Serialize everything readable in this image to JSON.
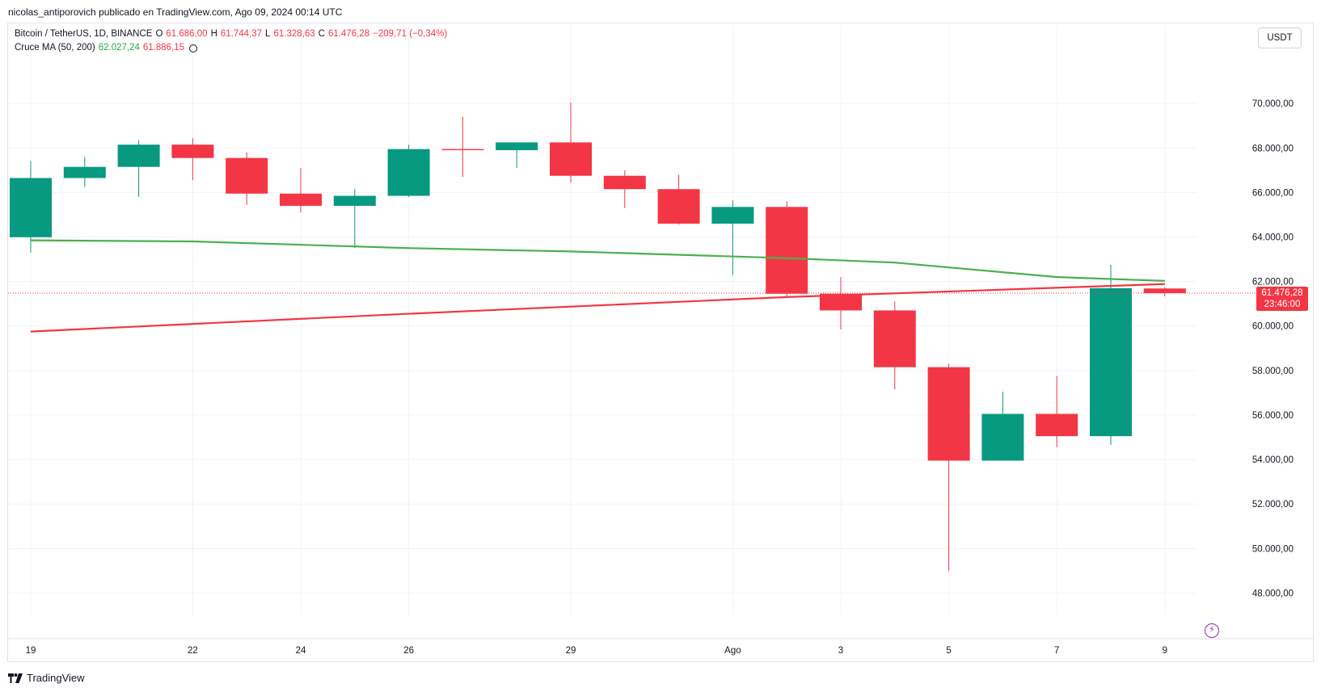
{
  "caption": "nicolas_antiporovich publicado en TradingView.com, Ago 09, 2024 00:14 UTC",
  "legend": {
    "symbol": "Bitcoin / TetherUS, 1D, BINANCE",
    "o_label": "O",
    "o_value": "61.686,00",
    "h_label": "H",
    "h_value": "61.744,37",
    "l_label": "L",
    "l_value": "61.328,63",
    "c_label": "C",
    "c_value": "61.476,28",
    "change": "−209,71 (−0,34%)",
    "ma_label": "Cruce MA (50, 200)",
    "ma_fast_value": "62.027,24",
    "ma_slow_value": "61.886,15"
  },
  "currency_button": "USDT",
  "last_price": {
    "price": "61.476,28",
    "countdown": "23:46:00"
  },
  "footer": {
    "brand": "TradingView"
  },
  "colors": {
    "up": "#089981",
    "down": "#f23645",
    "ma_fast": "#4caf50",
    "ma_slow": "#f23645",
    "grid": "#f0f3fa",
    "axis_text": "#131722"
  },
  "chart_data": {
    "type": "candlestick",
    "y_axis_ticks": [
      "70.000,00",
      "68.000,00",
      "66.000,00",
      "64.000,00",
      "62.000,00",
      "60.000,00",
      "58.000,00",
      "56.000,00",
      "54.000,00",
      "52.000,00",
      "50.000,00",
      "48.000,00"
    ],
    "y_tick_values": [
      70000,
      68000,
      66000,
      64000,
      62000,
      60000,
      58000,
      56000,
      54000,
      52000,
      50000,
      48000
    ],
    "ylim": [
      47000,
      72400
    ],
    "x_axis_ticks": [
      {
        "label": "19",
        "index": 0
      },
      {
        "label": "22",
        "index": 3
      },
      {
        "label": "24",
        "index": 5
      },
      {
        "label": "26",
        "index": 7
      },
      {
        "label": "29",
        "index": 10
      },
      {
        "label": "Ago",
        "index": 13
      },
      {
        "label": "3",
        "index": 15
      },
      {
        "label": "5",
        "index": 17
      },
      {
        "label": "7",
        "index": 19
      },
      {
        "label": "9",
        "index": 21
      }
    ],
    "candles": [
      {
        "date": "Jul 19",
        "o": 63990,
        "h": 67400,
        "l": 63300,
        "c": 66650
      },
      {
        "date": "Jul 20",
        "o": 66650,
        "h": 67600,
        "l": 66250,
        "c": 67150
      },
      {
        "date": "Jul 21",
        "o": 67150,
        "h": 68350,
        "l": 65800,
        "c": 68150
      },
      {
        "date": "Jul 22",
        "o": 68150,
        "h": 68450,
        "l": 66550,
        "c": 67550
      },
      {
        "date": "Jul 23",
        "o": 67550,
        "h": 67800,
        "l": 65450,
        "c": 65950
      },
      {
        "date": "Jul 24",
        "o": 65950,
        "h": 67100,
        "l": 65100,
        "c": 65400
      },
      {
        "date": "Jul 25",
        "o": 65400,
        "h": 66150,
        "l": 63500,
        "c": 65850
      },
      {
        "date": "Jul 26",
        "o": 65850,
        "h": 68150,
        "l": 65800,
        "c": 67950
      },
      {
        "date": "Jul 27",
        "o": 67950,
        "h": 69400,
        "l": 66700,
        "c": 67900
      },
      {
        "date": "Jul 28",
        "o": 67900,
        "h": 68250,
        "l": 67100,
        "c": 68250
      },
      {
        "date": "Jul 29",
        "o": 68250,
        "h": 70050,
        "l": 66450,
        "c": 66750
      },
      {
        "date": "Jul 30",
        "o": 66750,
        "h": 67000,
        "l": 65300,
        "c": 66150
      },
      {
        "date": "Jul 31",
        "o": 66150,
        "h": 66800,
        "l": 64550,
        "c": 64600
      },
      {
        "date": "Aug 1",
        "o": 64600,
        "h": 65650,
        "l": 62300,
        "c": 65350
      },
      {
        "date": "Aug 2",
        "o": 65350,
        "h": 65600,
        "l": 61300,
        "c": 61450
      },
      {
        "date": "Aug 3",
        "o": 61450,
        "h": 62200,
        "l": 59850,
        "c": 60700
      },
      {
        "date": "Aug 4",
        "o": 60700,
        "h": 61100,
        "l": 57150,
        "c": 58150
      },
      {
        "date": "Aug 5",
        "o": 58150,
        "h": 58300,
        "l": 49000,
        "c": 53950
      },
      {
        "date": "Aug 6",
        "o": 53950,
        "h": 57050,
        "l": 53950,
        "c": 56050
      },
      {
        "date": "Aug 7",
        "o": 56050,
        "h": 57750,
        "l": 54550,
        "c": 55050
      },
      {
        "date": "Aug 8",
        "o": 55050,
        "h": 62750,
        "l": 54650,
        "c": 61700
      },
      {
        "date": "Aug 9",
        "o": 61686,
        "h": 61744.37,
        "l": 61328.63,
        "c": 61476.28
      }
    ],
    "ma_fast": {
      "name": "MA 50",
      "points": [
        [
          0,
          63850
        ],
        [
          3,
          63800
        ],
        [
          7,
          63500
        ],
        [
          10,
          63350
        ],
        [
          14,
          63050
        ],
        [
          16,
          62850
        ],
        [
          19,
          62200
        ],
        [
          21,
          62027.24
        ]
      ]
    },
    "ma_slow": {
      "name": "MA 200",
      "points": [
        [
          0,
          59750
        ],
        [
          7,
          60550
        ],
        [
          14,
          61300
        ],
        [
          21,
          61886.15
        ]
      ]
    },
    "last_price_value": 61476.28,
    "grid": true
  }
}
